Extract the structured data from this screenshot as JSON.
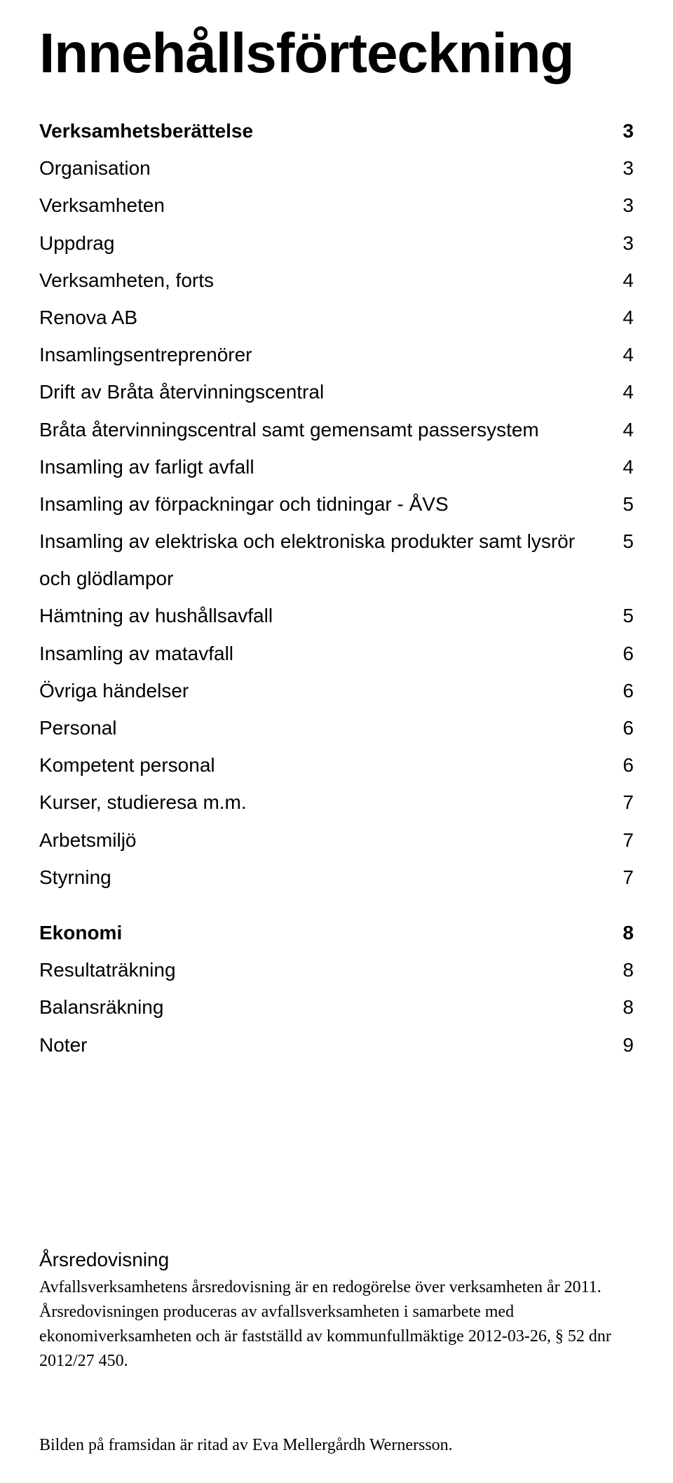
{
  "title": "Innehållsförteckning",
  "toc": {
    "entries": [
      {
        "label": "Verksamhetsberättelse",
        "page": "3",
        "bold": true
      },
      {
        "label": "Organisation",
        "page": "3",
        "bold": false
      },
      {
        "label": "Verksamheten",
        "page": "3",
        "bold": false
      },
      {
        "label": "Uppdrag",
        "page": "3",
        "bold": false
      },
      {
        "label": "Verksamheten, forts",
        "page": "4",
        "bold": false
      },
      {
        "label": "Renova AB",
        "page": "4",
        "bold": false
      },
      {
        "label": "Insamlingsentreprenörer",
        "page": "4",
        "bold": false
      },
      {
        "label": "Drift av Bråta återvinningscentral",
        "page": "4",
        "bold": false
      },
      {
        "label": "Bråta återvinningscentral samt gemensamt passersystem",
        "page": "4",
        "bold": false
      },
      {
        "label": "Insamling av farligt avfall",
        "page": "4",
        "bold": false
      },
      {
        "label": "Insamling av förpackningar och tidningar - ÅVS",
        "page": "5",
        "bold": false
      },
      {
        "label": "Insamling av elektriska och elektroniska produkter samt lysrör och glödlampor",
        "page": "5",
        "bold": false
      },
      {
        "label": "Hämtning av hushållsavfall",
        "page": "5",
        "bold": false
      },
      {
        "label": "Insamling av matavfall",
        "page": "6",
        "bold": false
      },
      {
        "label": "Övriga händelser",
        "page": "6",
        "bold": false
      },
      {
        "label": "Personal",
        "page": "6",
        "bold": false
      },
      {
        "label": "Kompetent personal",
        "page": "6",
        "bold": false
      },
      {
        "label": "Kurser, studieresa m.m.",
        "page": "7",
        "bold": false
      },
      {
        "label": "Arbetsmiljö",
        "page": "7",
        "bold": false
      },
      {
        "label": "Styrning",
        "page": "7",
        "bold": false
      }
    ],
    "entries2": [
      {
        "label": "Ekonomi",
        "page": "8",
        "bold": true
      },
      {
        "label": "Resultaträkning",
        "page": "8",
        "bold": false
      },
      {
        "label": "Balansräkning",
        "page": "8",
        "bold": false
      },
      {
        "label": "Noter",
        "page": "9",
        "bold": false
      }
    ]
  },
  "bottom": {
    "heading": "Årsredovisning",
    "para1": "Avfallsverksamhetens årsredovisning är en redogörelse över verksamheten år 2011.",
    "para2": "Årsredovisningen produceras av avfallsverksamheten i samarbete med ekonomiverksamheten och är fastställd av kommunfullmäktige 2012-03-26, § 52 dnr 2012/27 450."
  },
  "credit": "Bilden på framsidan är ritad av Eva Mellergårdh Wernersson.",
  "style": {
    "text_color": "#000000",
    "background_color": "#ffffff",
    "title_fontsize_pt": 60,
    "toc_fontsize_pt": 21,
    "toc_bold_weight": 600,
    "body_fontsize_pt": 18,
    "font_sans": "Gill Sans",
    "font_serif": "Georgia"
  }
}
